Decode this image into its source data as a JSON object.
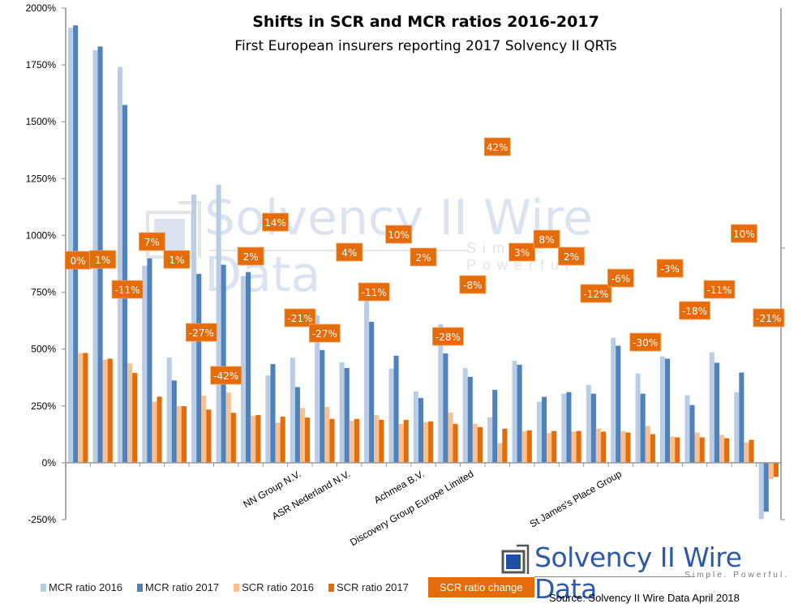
{
  "chart_data": {
    "type": "bar",
    "title": "Shifts in SCR and MCR ratios 2016-2017",
    "subtitle": "First European insurers reporting 2017 Solvency II QRTs",
    "ylim": [
      -250,
      2000
    ],
    "yticks": [
      "-250%",
      "0%",
      "250%",
      "500%",
      "750%",
      "1000%",
      "1250%",
      "1500%",
      "1750%",
      "2000%"
    ],
    "ytick_values": [
      -250,
      0,
      250,
      500,
      750,
      1000,
      1250,
      1500,
      1750,
      2000
    ],
    "grid": false,
    "legend_placement": "bottom",
    "categories": [
      "",
      "",
      "",
      "",
      "",
      "",
      "",
      "",
      "",
      "NN Group N.V.",
      "",
      "ASR Nederland N.V.",
      "",
      "",
      "Achmea B.V.",
      "",
      "Discovery Group Europe Limited",
      "",
      "",
      "",
      "",
      "",
      "St James's Place Group",
      "",
      "",
      "",
      "",
      "",
      ""
    ],
    "series": [
      {
        "name": "MCR ratio 2016",
        "color": "#b9cde5",
        "values": [
          1914,
          1815,
          1741,
          867,
          463,
          1180,
          1223,
          822,
          384,
          463,
          649,
          442,
          780,
          414,
          314,
          610,
          417,
          200,
          449,
          269,
          304,
          343,
          550,
          393,
          468,
          297,
          486,
          311,
          -248
        ]
      },
      {
        "name": "MCR ratio 2017",
        "color": "#4f81bd",
        "values": [
          1924,
          1831,
          1574,
          899,
          362,
          831,
          871,
          839,
          434,
          333,
          496,
          417,
          620,
          471,
          285,
          481,
          378,
          321,
          431,
          290,
          311,
          304,
          515,
          304,
          458,
          254,
          440,
          397,
          -215
        ]
      },
      {
        "name": "SCR ratio 2016",
        "color": "#fac090",
        "values": [
          483,
          454,
          437,
          269,
          249,
          295,
          309,
          207,
          176,
          241,
          246,
          185,
          210,
          171,
          179,
          221,
          171,
          86,
          139,
          130,
          137,
          151,
          140,
          162,
          115,
          133,
          122,
          90,
          -72
        ]
      },
      {
        "name": "SCR ratio 2017",
        "color": "#e46c0a",
        "values": [
          483,
          458,
          395,
          291,
          249,
          234,
          220,
          210,
          203,
          199,
          193,
          193,
          189,
          189,
          182,
          171,
          157,
          150,
          143,
          140,
          140,
          137,
          133,
          126,
          112,
          112,
          108,
          101,
          -62
        ]
      }
    ],
    "change_series": {
      "name": "SCR ratio change",
      "color": "#e46c0a",
      "labels": [
        "0%",
        "1%",
        "-11%",
        "7%",
        "1%",
        "-27%",
        "-42%",
        "2%",
        "14%",
        "-21%",
        "-27%",
        "4%",
        "-11%",
        "10%",
        "2%",
        "-28%",
        "-8%",
        "42%",
        "3%",
        "8%",
        "2%",
        "-12%",
        "-6%",
        "-30%",
        "-3%",
        "-18%",
        "-11%",
        "10%",
        "-21%"
      ]
    }
  },
  "watermark": {
    "text": "Solvency II Wire Data",
    "tagline": "Simple. Powerful."
  },
  "logo": {
    "text": "Solvency II Wire Data",
    "tagline": "Simple. Powerful."
  },
  "source": "Source: Solvency II Wire Data April 2018"
}
